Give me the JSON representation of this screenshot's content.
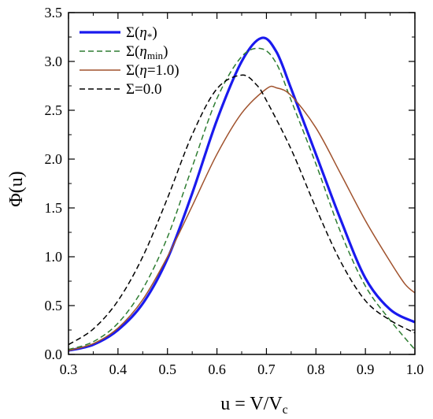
{
  "chart_data": {
    "type": "line",
    "xlabel": "u = V/V",
    "xlabel_sub": "c",
    "ylabel": "Φ(u)",
    "xlim": [
      0.3,
      1.0
    ],
    "ylim": [
      0.0,
      3.5
    ],
    "xticks": [
      "0.3",
      "0.4",
      "0.5",
      "0.6",
      "0.7",
      "0.8",
      "0.9",
      "1.0"
    ],
    "yticks": [
      "0.0",
      "0.5",
      "1.0",
      "1.5",
      "2.0",
      "2.5",
      "3.0",
      "3.5"
    ],
    "grid": false,
    "legend_position": "top-left",
    "series": [
      {
        "name": "Σ(η*)",
        "color": "#1a1aee",
        "dash": "solid",
        "points": [
          [
            0.3,
            0.04
          ],
          [
            0.35,
            0.1
          ],
          [
            0.4,
            0.25
          ],
          [
            0.45,
            0.52
          ],
          [
            0.5,
            0.98
          ],
          [
            0.55,
            1.65
          ],
          [
            0.6,
            2.4
          ],
          [
            0.65,
            3.0
          ],
          [
            0.69,
            3.24
          ],
          [
            0.72,
            3.1
          ],
          [
            0.75,
            2.72
          ],
          [
            0.8,
            2.05
          ],
          [
            0.85,
            1.38
          ],
          [
            0.9,
            0.78
          ],
          [
            0.95,
            0.46
          ],
          [
            1.0,
            0.33
          ]
        ]
      },
      {
        "name": "Σ(η_min)",
        "color": "#2e7d32",
        "dash": "dash",
        "points": [
          [
            0.3,
            0.05
          ],
          [
            0.35,
            0.13
          ],
          [
            0.4,
            0.32
          ],
          [
            0.45,
            0.67
          ],
          [
            0.5,
            1.2
          ],
          [
            0.55,
            1.92
          ],
          [
            0.6,
            2.62
          ],
          [
            0.65,
            3.05
          ],
          [
            0.69,
            3.13
          ],
          [
            0.72,
            2.98
          ],
          [
            0.75,
            2.6
          ],
          [
            0.8,
            1.95
          ],
          [
            0.85,
            1.25
          ],
          [
            0.9,
            0.7
          ],
          [
            0.95,
            0.35
          ],
          [
            1.0,
            0.05
          ]
        ]
      },
      {
        "name": "Σ(η=1.0)",
        "color": "#a0522d",
        "dash": "solid",
        "points": [
          [
            0.3,
            0.04
          ],
          [
            0.35,
            0.11
          ],
          [
            0.4,
            0.27
          ],
          [
            0.45,
            0.56
          ],
          [
            0.5,
            1.0
          ],
          [
            0.55,
            1.52
          ],
          [
            0.6,
            2.05
          ],
          [
            0.65,
            2.47
          ],
          [
            0.7,
            2.72
          ],
          [
            0.72,
            2.73
          ],
          [
            0.75,
            2.65
          ],
          [
            0.8,
            2.32
          ],
          [
            0.85,
            1.85
          ],
          [
            0.9,
            1.37
          ],
          [
            0.95,
            0.95
          ],
          [
            0.98,
            0.72
          ],
          [
            1.0,
            0.63
          ]
        ]
      },
      {
        "name": "Σ=0.0",
        "color": "#000000",
        "dash": "dash",
        "points": [
          [
            0.3,
            0.1
          ],
          [
            0.35,
            0.26
          ],
          [
            0.4,
            0.55
          ],
          [
            0.45,
            1.0
          ],
          [
            0.5,
            1.6
          ],
          [
            0.55,
            2.25
          ],
          [
            0.6,
            2.72
          ],
          [
            0.65,
            2.86
          ],
          [
            0.68,
            2.76
          ],
          [
            0.7,
            2.6
          ],
          [
            0.75,
            2.1
          ],
          [
            0.8,
            1.5
          ],
          [
            0.85,
            0.95
          ],
          [
            0.9,
            0.55
          ],
          [
            0.95,
            0.35
          ],
          [
            1.0,
            0.22
          ]
        ]
      }
    ]
  },
  "legend": {
    "entries": [
      {
        "prefix": "Σ(",
        "greek": "η",
        "sub": "*",
        "suffix": ")"
      },
      {
        "prefix": "Σ(",
        "greek": "η",
        "sub": "min",
        "suffix": ")"
      },
      {
        "prefix": "Σ(",
        "greek": "η",
        "sub": "",
        "suffix": "=1.0)"
      },
      {
        "prefix": "Σ=0.0",
        "greek": "",
        "sub": "",
        "suffix": ""
      }
    ]
  }
}
